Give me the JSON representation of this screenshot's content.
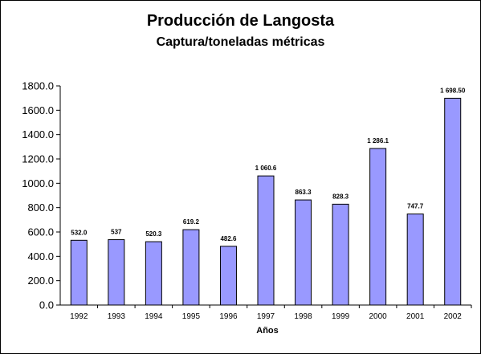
{
  "chart_data": {
    "type": "bar",
    "title": "Producción de Langosta",
    "subtitle": "Captura/toneladas métricas",
    "xlabel": "Años",
    "ylabel": "",
    "categories": [
      "1992",
      "1993",
      "1994",
      "1995",
      "1996",
      "1997",
      "1998",
      "1999",
      "2000",
      "2001",
      "2002"
    ],
    "values": [
      532.0,
      537,
      520.3,
      619.2,
      482.6,
      1060.6,
      863.3,
      828.3,
      1286.1,
      747.7,
      1698.5
    ],
    "data_labels": [
      "532.0",
      "537",
      "520.3",
      "619.2",
      "482.6",
      "1 060.6",
      "863.3",
      "828.3",
      "1 286.1",
      "747.7",
      "1 698.50"
    ],
    "ylim": [
      0,
      1800
    ],
    "yticks": [
      "0.0",
      "200.0",
      "400.0",
      "600.0",
      "800.0",
      "1000.0",
      "1200.0",
      "1400.0",
      "1600.0",
      "1800.0"
    ],
    "grid": false,
    "legend": "none",
    "bar_color": "#9999FF",
    "bar_edge_color": "#000000"
  }
}
